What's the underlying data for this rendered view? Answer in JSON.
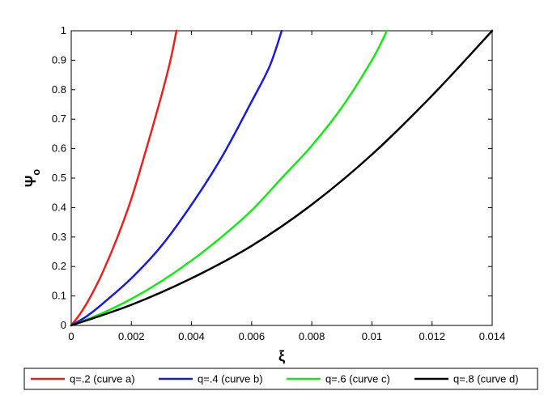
{
  "chart_data": {
    "type": "line",
    "xlabel": "ξ",
    "ylabel": "Ψ",
    "ylabel_subscript": "o",
    "xlim": [
      0,
      0.014
    ],
    "ylim": [
      0,
      1
    ],
    "x_ticks": [
      0,
      0.002,
      0.004,
      0.006,
      0.008,
      0.01,
      0.012,
      0.014
    ],
    "x_tick_labels": [
      "0",
      "0.002",
      "0.004",
      "0.006",
      "0.008",
      "0.01",
      "0.012",
      "0.014"
    ],
    "y_ticks": [
      0,
      0.1,
      0.2,
      0.3,
      0.4,
      0.5,
      0.6,
      0.7,
      0.8,
      0.9,
      1
    ],
    "y_tick_labels": [
      "0",
      "0.1",
      "0.2",
      "0.3",
      "0.4",
      "0.5",
      "0.6",
      "0.7",
      "0.8",
      "0.9",
      "1"
    ],
    "grid": false,
    "legend_position": "bottom",
    "series": [
      {
        "name": "q=.2 (curve a)",
        "color": "#e8201e",
        "x": [
          0,
          0.0003,
          0.0006,
          0.001,
          0.0015,
          0.002,
          0.0025,
          0.003,
          0.0033,
          0.0035
        ],
        "y": [
          0,
          0.04,
          0.09,
          0.17,
          0.29,
          0.43,
          0.6,
          0.78,
          0.9,
          1.0
        ]
      },
      {
        "name": "q=.4 (curve b)",
        "color": "#1a1ad6",
        "x": [
          0,
          0.0005,
          0.001,
          0.002,
          0.003,
          0.004,
          0.005,
          0.006,
          0.0066,
          0.007
        ],
        "y": [
          0,
          0.03,
          0.07,
          0.16,
          0.27,
          0.41,
          0.57,
          0.76,
          0.88,
          1.0
        ]
      },
      {
        "name": "q=.6 (curve c)",
        "color": "#19e619",
        "x": [
          0,
          0.001,
          0.002,
          0.003,
          0.004,
          0.005,
          0.006,
          0.007,
          0.008,
          0.009,
          0.01,
          0.0105
        ],
        "y": [
          0,
          0.04,
          0.09,
          0.15,
          0.22,
          0.3,
          0.39,
          0.5,
          0.61,
          0.74,
          0.9,
          1.0
        ]
      },
      {
        "name": "q=.8 (curve d)",
        "color": "#000000",
        "x": [
          0,
          0.002,
          0.004,
          0.006,
          0.008,
          0.01,
          0.012,
          0.014
        ],
        "y": [
          0,
          0.07,
          0.16,
          0.27,
          0.41,
          0.58,
          0.78,
          1.0
        ]
      }
    ]
  }
}
